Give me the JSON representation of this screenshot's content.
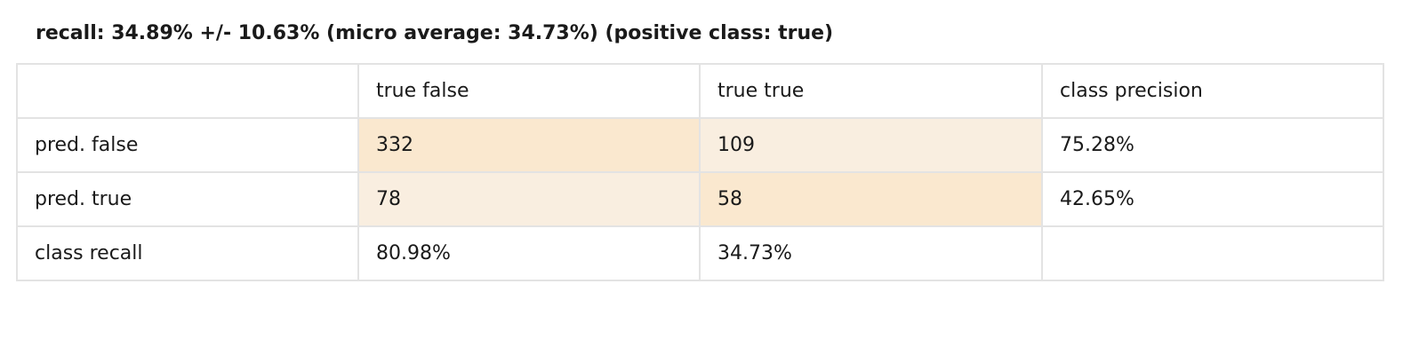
{
  "title": "recall: 34.89% +/- 10.63% (micro average: 34.73%) (positive class: true)",
  "header": [
    "",
    "true false",
    "true true",
    "class precision"
  ],
  "rows": [
    {
      "label": "pred. false",
      "cells": [
        "332",
        "109",
        "75.28%"
      ]
    },
    {
      "label": "pred. true",
      "cells": [
        "78",
        "58",
        "42.65%"
      ]
    },
    {
      "label": "class recall",
      "cells": [
        "80.98%",
        "34.73%",
        ""
      ]
    }
  ],
  "colors": {
    "diagonal_cell": "#fae8cf",
    "off_diagonal_cell": "#f9eee0",
    "grid": "#e3e3e3"
  }
}
